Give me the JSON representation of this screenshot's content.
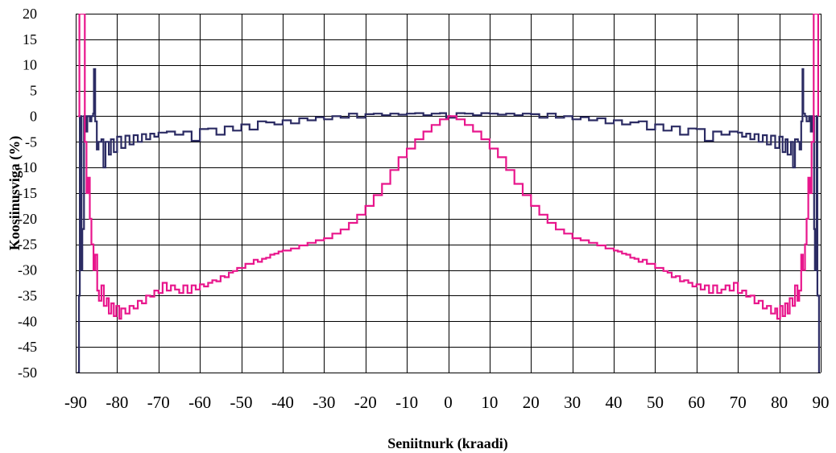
{
  "chart_data": {
    "type": "line",
    "xlabel": "Seniitnurk (kraadi)",
    "ylabel": "Koosiinusviga (%)",
    "xlim": [
      -90,
      90
    ],
    "ylim": [
      -50,
      20
    ],
    "x_ticks": [
      -90,
      -80,
      -70,
      -60,
      -50,
      -40,
      -30,
      -20,
      -10,
      0,
      10,
      20,
      30,
      40,
      50,
      60,
      70,
      80,
      90
    ],
    "y_ticks": [
      20,
      15,
      10,
      5,
      0,
      -5,
      -10,
      -15,
      -20,
      -25,
      -30,
      -35,
      -40,
      -45,
      -50
    ],
    "grid": true,
    "legend": "none",
    "series": [
      {
        "color": "#2b2b63",
        "points": [
          [
            -89.6,
            -50
          ],
          [
            -89.2,
            -35
          ],
          [
            -89.0,
            0
          ],
          [
            -88.6,
            -30
          ],
          [
            -88.4,
            -22
          ],
          [
            -88.0,
            0
          ],
          [
            -87.6,
            -3
          ],
          [
            -87.2,
            0
          ],
          [
            -86.6,
            -1
          ],
          [
            -86.2,
            0
          ],
          [
            -85.8,
            0.5
          ],
          [
            -85.6,
            9.2
          ],
          [
            -85.3,
            -1
          ],
          [
            -84.9,
            -6.5
          ],
          [
            -84.5,
            -5
          ],
          [
            -83.8,
            -4.5
          ],
          [
            -83.3,
            -10
          ],
          [
            -82.8,
            -5
          ],
          [
            -82.0,
            -7.5
          ],
          [
            -81.5,
            -4.5
          ],
          [
            -80.8,
            -7
          ],
          [
            -80.0,
            -4
          ],
          [
            -79.0,
            -6.2
          ],
          [
            -78.0,
            -3.8
          ],
          [
            -77.0,
            -5.5
          ],
          [
            -76.0,
            -3.7
          ],
          [
            -75.0,
            -5
          ],
          [
            -74.0,
            -3.5
          ],
          [
            -73.0,
            -4.5
          ],
          [
            -72.0,
            -3.4
          ],
          [
            -71.0,
            -4
          ],
          [
            -70.0,
            -3.2
          ],
          [
            -68.0,
            -3.0
          ],
          [
            -66.0,
            -3.6
          ],
          [
            -64.0,
            -3.0
          ],
          [
            -62.0,
            -4.8
          ],
          [
            -60.0,
            -2.5
          ],
          [
            -58.0,
            -2.4
          ],
          [
            -56.0,
            -3.6
          ],
          [
            -54.0,
            -2.0
          ],
          [
            -52.0,
            -2.8
          ],
          [
            -50.0,
            -1.6
          ],
          [
            -48.0,
            -2.6
          ],
          [
            -46.0,
            -1.0
          ],
          [
            -44.0,
            -1.2
          ],
          [
            -42.0,
            -1.6
          ],
          [
            -40.0,
            -0.8
          ],
          [
            -38.0,
            -1.4
          ],
          [
            -36.0,
            -0.4
          ],
          [
            -34.0,
            -0.8
          ],
          [
            -32.0,
            -0.2
          ],
          [
            -30.0,
            -0.6
          ],
          [
            -28.0,
            0.0
          ],
          [
            -26.0,
            -0.3
          ],
          [
            -24.0,
            0.5
          ],
          [
            -22.0,
            -0.3
          ],
          [
            -20.0,
            0.4
          ],
          [
            -18.0,
            0.5
          ],
          [
            -16.0,
            0.2
          ],
          [
            -14.0,
            0.5
          ],
          [
            -12.0,
            0.3
          ],
          [
            -10.0,
            0.5
          ],
          [
            -8.0,
            0.6
          ],
          [
            -6.0,
            0.2
          ],
          [
            -4.0,
            0.5
          ],
          [
            -2.0,
            0.6
          ],
          [
            -0.5,
            -0.3
          ],
          [
            0.0,
            0.0
          ],
          [
            0.5,
            -0.3
          ],
          [
            2.0,
            0.6
          ],
          [
            4.0,
            0.5
          ],
          [
            6.0,
            0.2
          ],
          [
            8.0,
            0.6
          ],
          [
            10.0,
            0.5
          ],
          [
            12.0,
            0.3
          ],
          [
            14.0,
            0.5
          ],
          [
            16.0,
            0.2
          ],
          [
            18.0,
            0.5
          ],
          [
            20.0,
            0.4
          ],
          [
            22.0,
            -0.3
          ],
          [
            24.0,
            0.5
          ],
          [
            26.0,
            -0.3
          ],
          [
            28.0,
            0.0
          ],
          [
            30.0,
            -0.6
          ],
          [
            32.0,
            -0.2
          ],
          [
            34.0,
            -0.8
          ],
          [
            36.0,
            -0.4
          ],
          [
            38.0,
            -1.4
          ],
          [
            40.0,
            -0.8
          ],
          [
            42.0,
            -1.6
          ],
          [
            44.0,
            -1.2
          ],
          [
            46.0,
            -1.0
          ],
          [
            48.0,
            -2.6
          ],
          [
            50.0,
            -1.6
          ],
          [
            52.0,
            -2.8
          ],
          [
            54.0,
            -2.0
          ],
          [
            56.0,
            -3.6
          ],
          [
            58.0,
            -2.4
          ],
          [
            60.0,
            -2.5
          ],
          [
            62.0,
            -4.8
          ],
          [
            64.0,
            -3.0
          ],
          [
            66.0,
            -3.6
          ],
          [
            68.0,
            -3.0
          ],
          [
            70.0,
            -3.2
          ],
          [
            71.0,
            -4
          ],
          [
            72.0,
            -3.4
          ],
          [
            73.0,
            -4.5
          ],
          [
            74.0,
            -3.5
          ],
          [
            75.0,
            -5
          ],
          [
            76.0,
            -3.7
          ],
          [
            77.0,
            -5.5
          ],
          [
            78.0,
            -3.8
          ],
          [
            79.0,
            -6.2
          ],
          [
            80.0,
            -4
          ],
          [
            80.8,
            -7
          ],
          [
            81.5,
            -4.5
          ],
          [
            82.0,
            -7.5
          ],
          [
            82.8,
            -5
          ],
          [
            83.3,
            -10
          ],
          [
            83.8,
            -4.5
          ],
          [
            84.5,
            -5
          ],
          [
            84.9,
            -6.5
          ],
          [
            85.3,
            -1
          ],
          [
            85.6,
            9.2
          ],
          [
            85.8,
            0.5
          ],
          [
            86.2,
            0
          ],
          [
            86.6,
            -1
          ],
          [
            87.2,
            0
          ],
          [
            87.6,
            -3
          ],
          [
            88.0,
            0
          ],
          [
            88.4,
            -22
          ],
          [
            88.6,
            -30
          ],
          [
            89.0,
            0
          ],
          [
            89.2,
            -35
          ],
          [
            89.6,
            -50
          ]
        ]
      },
      {
        "color": "#e8168c",
        "points": [
          [
            -89.4,
            0
          ],
          [
            -89.1,
            20
          ],
          [
            -88.3,
            20
          ],
          [
            -87.8,
            -5
          ],
          [
            -87.4,
            -15
          ],
          [
            -87.0,
            -12
          ],
          [
            -86.6,
            -20
          ],
          [
            -86.2,
            -25
          ],
          [
            -85.7,
            -30
          ],
          [
            -85.3,
            -27
          ],
          [
            -84.8,
            -34
          ],
          [
            -84.4,
            -36
          ],
          [
            -83.8,
            -33
          ],
          [
            -83.2,
            -37
          ],
          [
            -82.5,
            -35.5
          ],
          [
            -82.0,
            -38.5
          ],
          [
            -81.4,
            -36.5
          ],
          [
            -80.8,
            -39
          ],
          [
            -80.2,
            -37
          ],
          [
            -79.5,
            -39.5
          ],
          [
            -79.0,
            -37.5
          ],
          [
            -78.0,
            -38.5
          ],
          [
            -77.0,
            -37
          ],
          [
            -76.0,
            -37.5
          ],
          [
            -75.0,
            -36
          ],
          [
            -74.0,
            -36.5
          ],
          [
            -73.0,
            -35
          ],
          [
            -72.0,
            -35.2
          ],
          [
            -71.0,
            -34
          ],
          [
            -70.0,
            -34.5
          ],
          [
            -69.0,
            -32.5
          ],
          [
            -68.0,
            -34
          ],
          [
            -67.0,
            -33
          ],
          [
            -66.0,
            -33.8
          ],
          [
            -65.0,
            -34.5
          ],
          [
            -64.0,
            -33
          ],
          [
            -63.0,
            -34.5
          ],
          [
            -62.0,
            -33
          ],
          [
            -61.0,
            -33.8
          ],
          [
            -60.0,
            -32.8
          ],
          [
            -59.0,
            -33.2
          ],
          [
            -58.0,
            -32.5
          ],
          [
            -57.0,
            -32
          ],
          [
            -56.0,
            -32.2
          ],
          [
            -55.0,
            -31.2
          ],
          [
            -54.0,
            -31.4
          ],
          [
            -53.0,
            -30.5
          ],
          [
            -52.0,
            -30.2
          ],
          [
            -51.0,
            -29.6
          ],
          [
            -50.0,
            -29.6
          ],
          [
            -49.0,
            -28.8
          ],
          [
            -48.0,
            -28.8
          ],
          [
            -47.0,
            -28.0
          ],
          [
            -46.0,
            -28.4
          ],
          [
            -45.0,
            -27.8
          ],
          [
            -44.0,
            -27.6
          ],
          [
            -43.0,
            -27.0
          ],
          [
            -42.0,
            -26.8
          ],
          [
            -41.0,
            -26.4
          ],
          [
            -40.0,
            -26.2
          ],
          [
            -38.0,
            -25.8
          ],
          [
            -36.0,
            -25.2
          ],
          [
            -34.0,
            -24.7
          ],
          [
            -32.0,
            -24.2
          ],
          [
            -30.0,
            -23.8
          ],
          [
            -28.0,
            -22.9
          ],
          [
            -26.0,
            -22.1
          ],
          [
            -24.0,
            -20.8
          ],
          [
            -22.0,
            -19.2
          ],
          [
            -20.0,
            -17.5
          ],
          [
            -18.0,
            -15.4
          ],
          [
            -16.0,
            -13.2
          ],
          [
            -14.0,
            -10.5
          ],
          [
            -12.0,
            -8.0
          ],
          [
            -10.0,
            -6.3
          ],
          [
            -8.0,
            -4.5
          ],
          [
            -6.0,
            -3.0
          ],
          [
            -4.0,
            -1.7
          ],
          [
            -2.0,
            -0.6
          ],
          [
            0.0,
            0.0
          ],
          [
            2.0,
            -0.6
          ],
          [
            4.0,
            -1.7
          ],
          [
            6.0,
            -3.0
          ],
          [
            8.0,
            -4.5
          ],
          [
            10.0,
            -6.3
          ],
          [
            12.0,
            -8.0
          ],
          [
            14.0,
            -10.5
          ],
          [
            16.0,
            -13.2
          ],
          [
            18.0,
            -15.4
          ],
          [
            20.0,
            -17.5
          ],
          [
            22.0,
            -19.2
          ],
          [
            24.0,
            -20.8
          ],
          [
            26.0,
            -22.1
          ],
          [
            28.0,
            -22.9
          ],
          [
            30.0,
            -23.8
          ],
          [
            32.0,
            -24.2
          ],
          [
            34.0,
            -24.7
          ],
          [
            36.0,
            -25.2
          ],
          [
            38.0,
            -25.8
          ],
          [
            40.0,
            -26.2
          ],
          [
            41.0,
            -26.4
          ],
          [
            42.0,
            -26.8
          ],
          [
            43.0,
            -27.0
          ],
          [
            44.0,
            -27.6
          ],
          [
            45.0,
            -27.8
          ],
          [
            46.0,
            -28.4
          ],
          [
            47.0,
            -28.0
          ],
          [
            48.0,
            -28.8
          ],
          [
            49.0,
            -28.8
          ],
          [
            50.0,
            -29.6
          ],
          [
            51.0,
            -29.6
          ],
          [
            52.0,
            -30.2
          ],
          [
            53.0,
            -30.5
          ],
          [
            54.0,
            -31.4
          ],
          [
            55.0,
            -31.2
          ],
          [
            56.0,
            -32.2
          ],
          [
            57.0,
            -32
          ],
          [
            58.0,
            -32.5
          ],
          [
            59.0,
            -33.2
          ],
          [
            60.0,
            -32.8
          ],
          [
            61.0,
            -33.8
          ],
          [
            62.0,
            -33
          ],
          [
            63.0,
            -34.5
          ],
          [
            64.0,
            -33
          ],
          [
            65.0,
            -34.5
          ],
          [
            66.0,
            -33.8
          ],
          [
            67.0,
            -33
          ],
          [
            68.0,
            -34
          ],
          [
            69.0,
            -32.5
          ],
          [
            70.0,
            -34.5
          ],
          [
            71.0,
            -34
          ],
          [
            72.0,
            -35.2
          ],
          [
            73.0,
            -35
          ],
          [
            74.0,
            -36.5
          ],
          [
            75.0,
            -36
          ],
          [
            76.0,
            -37.5
          ],
          [
            77.0,
            -37
          ],
          [
            78.0,
            -38.5
          ],
          [
            79.0,
            -37.5
          ],
          [
            79.5,
            -39.5
          ],
          [
            80.2,
            -37
          ],
          [
            80.8,
            -39
          ],
          [
            81.4,
            -36.5
          ],
          [
            82.0,
            -38.5
          ],
          [
            82.5,
            -35.5
          ],
          [
            83.2,
            -37
          ],
          [
            83.8,
            -33
          ],
          [
            84.4,
            -36
          ],
          [
            84.8,
            -34
          ],
          [
            85.3,
            -27
          ],
          [
            85.7,
            -30
          ],
          [
            86.2,
            -25
          ],
          [
            86.6,
            -20
          ],
          [
            87.0,
            -12
          ],
          [
            87.4,
            -15
          ],
          [
            87.8,
            -5
          ],
          [
            88.3,
            20
          ],
          [
            89.1,
            20
          ],
          [
            89.4,
            0
          ]
        ]
      }
    ]
  }
}
